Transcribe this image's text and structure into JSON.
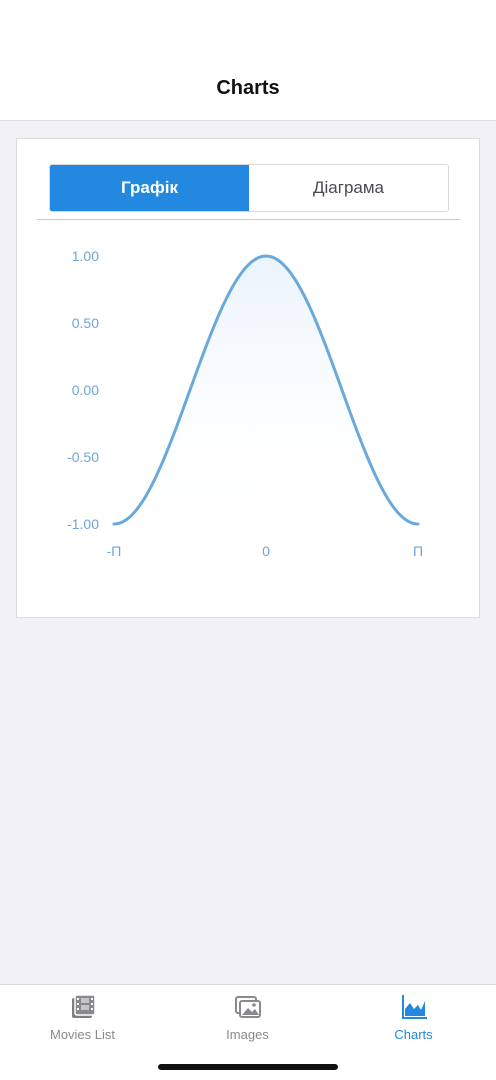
{
  "navbar": {
    "title": "Charts"
  },
  "segmented": {
    "items": [
      "Графік",
      "Діаграма"
    ],
    "selected": "Графік"
  },
  "chart_data": {
    "type": "area",
    "title": "",
    "xlabel": "",
    "ylabel": "",
    "function": "cos(x)",
    "x_tick_labels": [
      "-П",
      "0",
      "П"
    ],
    "y_tick_labels": [
      "1.00",
      "0.50",
      "0.00",
      "-0.50",
      "-1.00"
    ],
    "xlim": [
      -3.14159,
      3.14159
    ],
    "ylim": [
      -1,
      1
    ],
    "series": [
      {
        "x": [
          -3.14,
          -2.75,
          -2.36,
          -1.96,
          -1.57,
          -1.18,
          -0.79,
          -0.39,
          0,
          0.39,
          0.79,
          1.18,
          1.57,
          1.96,
          2.36,
          2.75,
          3.14
        ],
        "values": [
          -1.0,
          -0.92,
          -0.71,
          -0.38,
          0.0,
          0.38,
          0.71,
          0.92,
          1.0,
          0.92,
          0.71,
          0.38,
          0.0,
          -0.38,
          -0.71,
          -0.92,
          -1.0
        ]
      }
    ],
    "colors": {
      "line": "#6aa9dc",
      "fill_top": "#eaf3fc"
    },
    "grid": false,
    "legend": "none"
  },
  "tabbar": {
    "items": [
      {
        "label": "Movies List",
        "icon": "film-icon"
      },
      {
        "label": "Images",
        "icon": "photos-icon"
      },
      {
        "label": "Charts",
        "icon": "area-chart-icon"
      }
    ],
    "active": "Charts"
  },
  "colors": {
    "accent": "#2288e0",
    "inactive": "#8a8a8e"
  }
}
